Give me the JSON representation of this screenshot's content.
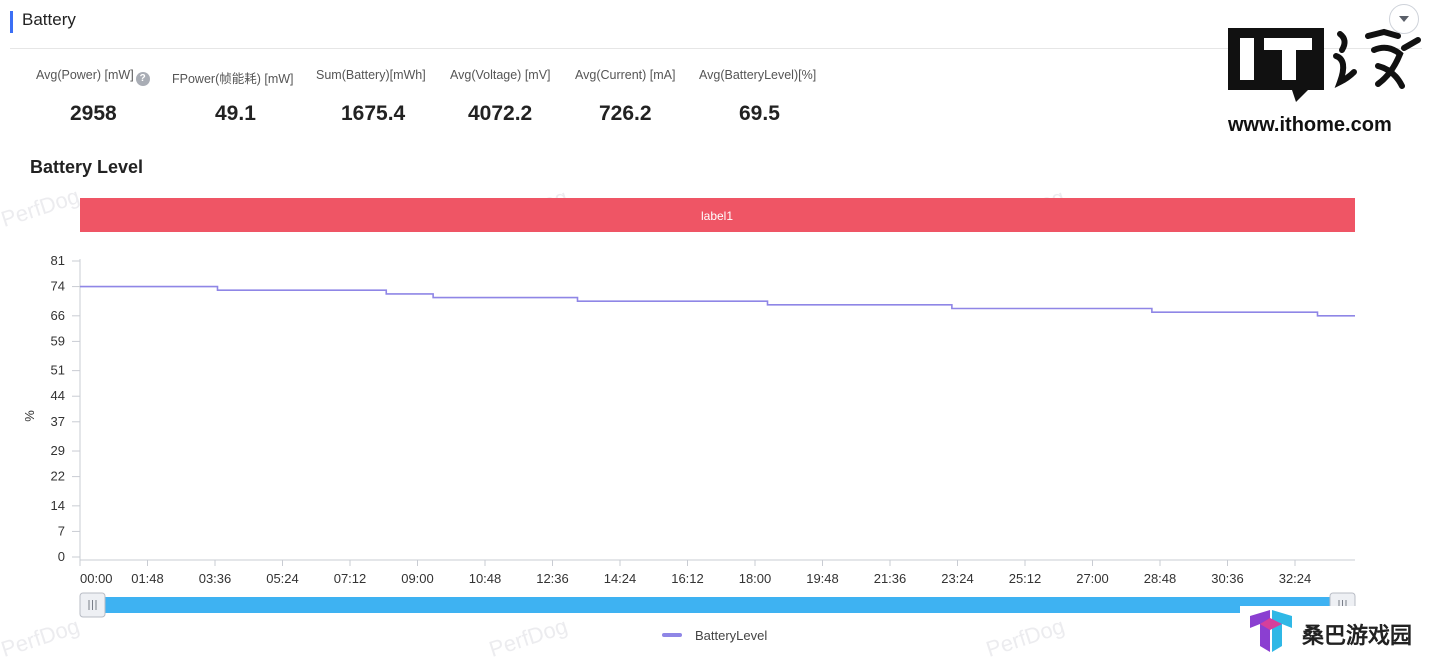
{
  "section": {
    "title": "Battery"
  },
  "stats": [
    {
      "label": "Avg(Power) [mW]",
      "value": "2958",
      "help": true
    },
    {
      "label": "FPower(帧能耗) [mW]",
      "value": "49.1"
    },
    {
      "label": "Sum(Battery)[mWh]",
      "value": "1675.4"
    },
    {
      "label": "Avg(Voltage) [mV]",
      "value": "4072.2"
    },
    {
      "label": "Avg(Current) [mA]",
      "value": "726.2"
    },
    {
      "label": "Avg(BatteryLevel)[%]",
      "value": "69.5"
    }
  ],
  "chart_title": "Battery Level",
  "watermark": "PerfDog",
  "logos": {
    "it_url": "www.ithome.com",
    "it_text": "IT之家",
    "sangba_text": "桑巴游戏园"
  },
  "chart_data": {
    "type": "line",
    "title": "Battery Level",
    "ylabel": "%",
    "xlabel": "",
    "ylim": [
      0,
      81
    ],
    "yticks": [
      0,
      7,
      14,
      22,
      29,
      37,
      44,
      51,
      59,
      66,
      74,
      81
    ],
    "xticks": [
      "00:00",
      "01:48",
      "03:36",
      "05:24",
      "07:12",
      "09:00",
      "10:48",
      "12:36",
      "14:24",
      "16:12",
      "18:00",
      "19:48",
      "21:36",
      "23:24",
      "25:12",
      "27:00",
      "28:48",
      "30:36",
      "32:24"
    ],
    "x_unit_minutes": true,
    "x_range_minutes": [
      0,
      2040
    ],
    "band": {
      "label": "label1",
      "color": "#ef5565"
    },
    "series": [
      {
        "name": "BatteryLevel",
        "color": "#8f86e6",
        "step": true,
        "points": [
          [
            0,
            74
          ],
          [
            220,
            73
          ],
          [
            490,
            72
          ],
          [
            565,
            71
          ],
          [
            796,
            70
          ],
          [
            1100,
            69
          ],
          [
            1395,
            68
          ],
          [
            1715,
            67
          ],
          [
            1980,
            66
          ],
          [
            2040,
            66
          ]
        ]
      }
    ],
    "legend": "bottom-center",
    "grid": false
  },
  "colors": {
    "accent": "#3b6ff5",
    "slider": "#3eb2f2",
    "line": "#8f86e6",
    "band": "#ef5565"
  }
}
